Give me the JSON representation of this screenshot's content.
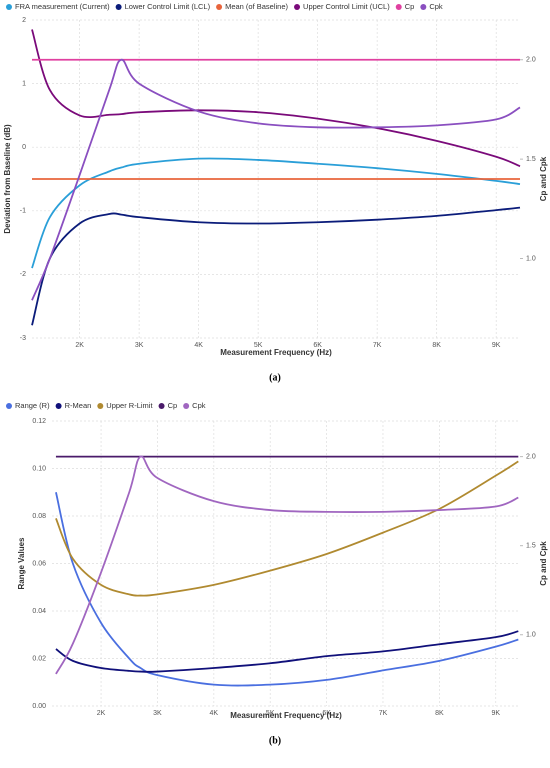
{
  "chart_data": [
    {
      "type": "line",
      "caption": "(a)",
      "xlabel": "Measurement Frequency (Hz)",
      "ylabel": "Deviation from Baseline (dB)",
      "y2label": "Cp and Cpk",
      "x": [
        1200,
        1500,
        2000,
        2500,
        2700,
        3000,
        4000,
        5000,
        6000,
        7000,
        8000,
        9000,
        9400
      ],
      "xlim": [
        1200,
        9400
      ],
      "xticks": [
        {
          "value": 2000,
          "label": "2K"
        },
        {
          "value": 3000,
          "label": "3K"
        },
        {
          "value": 4000,
          "label": "4K"
        },
        {
          "value": 5000,
          "label": "5K"
        },
        {
          "value": 6000,
          "label": "6K"
        },
        {
          "value": 7000,
          "label": "7K"
        },
        {
          "value": 8000,
          "label": "8K"
        },
        {
          "value": 9000,
          "label": "9K"
        }
      ],
      "ylim": [
        -3,
        2
      ],
      "yticks": [
        2,
        1,
        0,
        -1,
        -2,
        -3
      ],
      "y2lim": [
        0.6,
        2.2
      ],
      "y2ticks": [
        {
          "value": 2,
          "label": "2.0"
        },
        1.5,
        {
          "value": 1,
          "label": "1.0"
        }
      ],
      "grid": true,
      "legend": "top-left",
      "series": [
        {
          "name": "FRA measurement (Current)",
          "color": "#2a9fd8",
          "values": [
            -1.9,
            -1.1,
            -0.6,
            -0.38,
            -0.32,
            -0.26,
            -0.18,
            -0.2,
            -0.26,
            -0.33,
            -0.42,
            -0.53,
            -0.58
          ]
        },
        {
          "name": "Lower Control Limit (LCL)",
          "color": "#0b1c7a",
          "values": [
            -2.8,
            -1.75,
            -1.2,
            -1.05,
            -1.06,
            -1.1,
            -1.18,
            -1.2,
            -1.18,
            -1.14,
            -1.08,
            -0.99,
            -0.95
          ]
        },
        {
          "name": "Mean (of Baseline)",
          "color": "#e8643c",
          "values": [
            -0.5,
            -0.5,
            -0.5,
            -0.5,
            -0.5,
            -0.5,
            -0.5,
            -0.5,
            -0.5,
            -0.5,
            -0.5,
            -0.5,
            -0.5
          ]
        },
        {
          "name": "Upper Control Limit (UCL)",
          "color": "#7a0a7a",
          "values": [
            1.85,
            0.9,
            0.5,
            0.51,
            0.52,
            0.55,
            0.58,
            0.55,
            0.45,
            0.3,
            0.1,
            -0.15,
            -0.3
          ]
        },
        {
          "name": "Cp",
          "color": "#e040a0",
          "axis": "y2",
          "values": [
            2,
            2,
            2,
            2,
            2,
            2,
            2,
            2,
            2,
            2,
            2,
            2,
            2
          ]
        },
        {
          "name": "Cpk",
          "color": "#8a4fc0",
          "axis": "y2",
          "values": [
            0.79,
            1.0,
            1.42,
            1.85,
            2.0,
            1.88,
            1.74,
            1.68,
            1.66,
            1.66,
            1.67,
            1.7,
            1.76
          ]
        }
      ]
    },
    {
      "type": "line",
      "caption": "(b)",
      "xlabel": "Measurement Frequency (Hz)",
      "ylabel": "Range Values",
      "y2label": "Cp and Cpk",
      "x": [
        1200,
        1500,
        2000,
        2500,
        2700,
        3000,
        4000,
        5000,
        6000,
        7000,
        8000,
        9000,
        9400
      ],
      "xlim": [
        1130,
        9430
      ],
      "xticks": [
        {
          "value": 2000,
          "label": "2K"
        },
        {
          "value": 3000,
          "label": "3K"
        },
        {
          "value": 4000,
          "label": "4K"
        },
        {
          "value": 5000,
          "label": "5K"
        },
        {
          "value": 6000,
          "label": "6K"
        },
        {
          "value": 7000,
          "label": "7K"
        },
        {
          "value": 8000,
          "label": "8K"
        },
        {
          "value": 9000,
          "label": "9K"
        }
      ],
      "ylim": [
        0,
        0.12
      ],
      "yticks": [
        0.12,
        {
          "value": 0.1,
          "label": "0.10"
        },
        0.08,
        0.06,
        0.04,
        0.02,
        {
          "value": 0,
          "label": "0.00"
        }
      ],
      "y2lim": [
        0.6,
        2.2
      ],
      "y2ticks": [
        {
          "value": 2,
          "label": "2.0"
        },
        1.5,
        {
          "value": 1,
          "label": "1.0"
        }
      ],
      "grid": true,
      "legend": "top-left",
      "series": [
        {
          "name": "Range (R)",
          "color": "#4a6fe0",
          "values": [
            0.09,
            0.06,
            0.035,
            0.02,
            0.016,
            0.013,
            0.009,
            0.009,
            0.011,
            0.015,
            0.019,
            0.025,
            0.028
          ]
        },
        {
          "name": "R-Mean",
          "color": "#10107a",
          "values": [
            0.024,
            0.019,
            0.016,
            0.0148,
            0.0145,
            0.0145,
            0.016,
            0.018,
            0.021,
            0.023,
            0.026,
            0.029,
            0.0315
          ]
        },
        {
          "name": "Upper R-Limit",
          "color": "#b08a30",
          "values": [
            0.079,
            0.062,
            0.051,
            0.047,
            0.0465,
            0.047,
            0.051,
            0.057,
            0.064,
            0.073,
            0.083,
            0.097,
            0.103
          ]
        },
        {
          "name": "Cp",
          "color": "#4a1a6a",
          "axis": "y2",
          "values": [
            2,
            2,
            2,
            2,
            2,
            2,
            2,
            2,
            2,
            2,
            2,
            2,
            2
          ]
        },
        {
          "name": "Cpk",
          "color": "#a066c0",
          "axis": "y2",
          "values": [
            0.78,
            0.95,
            1.35,
            1.8,
            2.0,
            1.88,
            1.75,
            1.7,
            1.69,
            1.69,
            1.7,
            1.72,
            1.77
          ]
        }
      ]
    }
  ]
}
